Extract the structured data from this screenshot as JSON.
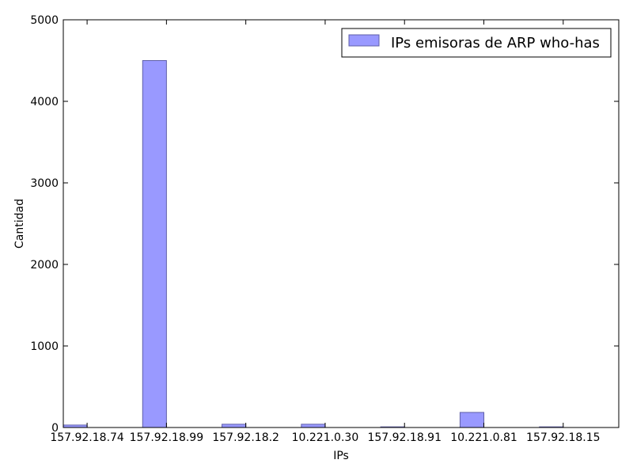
{
  "chart_data": {
    "type": "bar",
    "categories": [
      "157.92.18.74",
      "157.92.18.99",
      "157.92.18.2",
      "10.221.0.30",
      "157.92.18.91",
      "10.221.0.81",
      "157.92.18.15"
    ],
    "series": [
      {
        "name": "IPs emisoras de ARP who-has",
        "values": [
          30,
          4500,
          40,
          40,
          8,
          185,
          8
        ]
      }
    ],
    "xlabel": "IPs",
    "ylabel": "Cantidad",
    "ylim": [
      0,
      5000
    ],
    "yticks": [
      "0",
      "1000",
      "2000",
      "3000",
      "4000",
      "5000"
    ],
    "grid": false,
    "legend_position": "top-right",
    "colors": {
      "bar_fill": "#9999ff",
      "bar_edge": "#5f5fa8",
      "axis": "#000000"
    }
  }
}
